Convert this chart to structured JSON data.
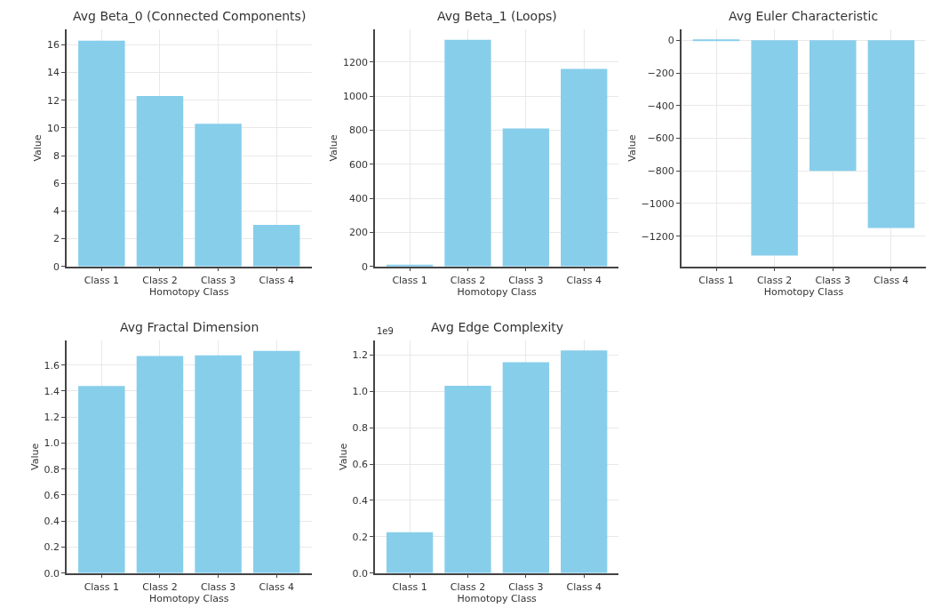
{
  "chart_data": [
    {
      "type": "bar",
      "title": "Avg Beta_0 (Connected Components)",
      "xlabel": "Homotopy Class",
      "ylabel": "Value",
      "categories": [
        "Class 1",
        "Class 2",
        "Class 3",
        "Class 4"
      ],
      "values": [
        16.3,
        12.3,
        10.3,
        3.0
      ],
      "color": "#87ceeb",
      "ylim": [
        0,
        17.1
      ],
      "yticks": [
        0,
        2,
        4,
        6,
        8,
        10,
        12,
        14,
        16
      ],
      "grid": true
    },
    {
      "type": "bar",
      "title": "Avg Beta_1 (Loops)",
      "xlabel": "Homotopy Class",
      "ylabel": "Value",
      "categories": [
        "Class 1",
        "Class 2",
        "Class 3",
        "Class 4"
      ],
      "values": [
        10,
        1330,
        810,
        1160
      ],
      "color": "#87ceeb",
      "ylim": [
        0,
        1390
      ],
      "yticks": [
        0,
        200,
        400,
        600,
        800,
        1000,
        1200
      ],
      "grid": true
    },
    {
      "type": "bar",
      "title": "Avg Euler Characteristic",
      "xlabel": "Homotopy Class",
      "ylabel": "Value",
      "categories": [
        "Class 1",
        "Class 2",
        "Class 3",
        "Class 4"
      ],
      "values": [
        -5,
        -1318,
        -800,
        -1150
      ],
      "color": "#87ceeb",
      "ylim": [
        -1385,
        65
      ],
      "yticks": [
        {
          "value": -1200,
          "label": "−1200"
        },
        {
          "value": -1000,
          "label": "−1000"
        },
        {
          "value": -800,
          "label": "−800"
        },
        {
          "value": -600,
          "label": "−600"
        },
        {
          "value": -400,
          "label": "−400"
        },
        {
          "value": -200,
          "label": "−200"
        },
        0
      ],
      "grid": true
    },
    {
      "type": "bar",
      "title": "Avg Fractal Dimension",
      "xlabel": "Homotopy Class",
      "ylabel": "Value",
      "categories": [
        "Class 1",
        "Class 2",
        "Class 3",
        "Class 4"
      ],
      "values": [
        1.44,
        1.67,
        1.675,
        1.71
      ],
      "color": "#87ceeb",
      "ylim": [
        0,
        1.79
      ],
      "yticks": [
        {
          "value": 0,
          "label": "0.0"
        },
        0.2,
        0.4,
        0.6,
        0.8,
        {
          "value": 1,
          "label": "1.0"
        },
        1.2,
        1.4,
        1.6
      ],
      "grid": true
    },
    {
      "type": "bar",
      "title": "Avg Edge Complexity",
      "xlabel": "Homotopy Class",
      "ylabel": "Value",
      "categories": [
        "Class 1",
        "Class 2",
        "Class 3",
        "Class 4"
      ],
      "values": [
        0.225,
        1.03,
        1.16,
        1.225
      ],
      "color": "#87ceeb",
      "ylim": [
        0,
        1.28
      ],
      "yticks": [
        {
          "value": 0,
          "label": "0.0"
        },
        0.2,
        0.4,
        0.6,
        0.8,
        {
          "value": 1,
          "label": "1.0"
        },
        1.2
      ],
      "grid": true,
      "annotations": [
        "1e9"
      ]
    }
  ]
}
